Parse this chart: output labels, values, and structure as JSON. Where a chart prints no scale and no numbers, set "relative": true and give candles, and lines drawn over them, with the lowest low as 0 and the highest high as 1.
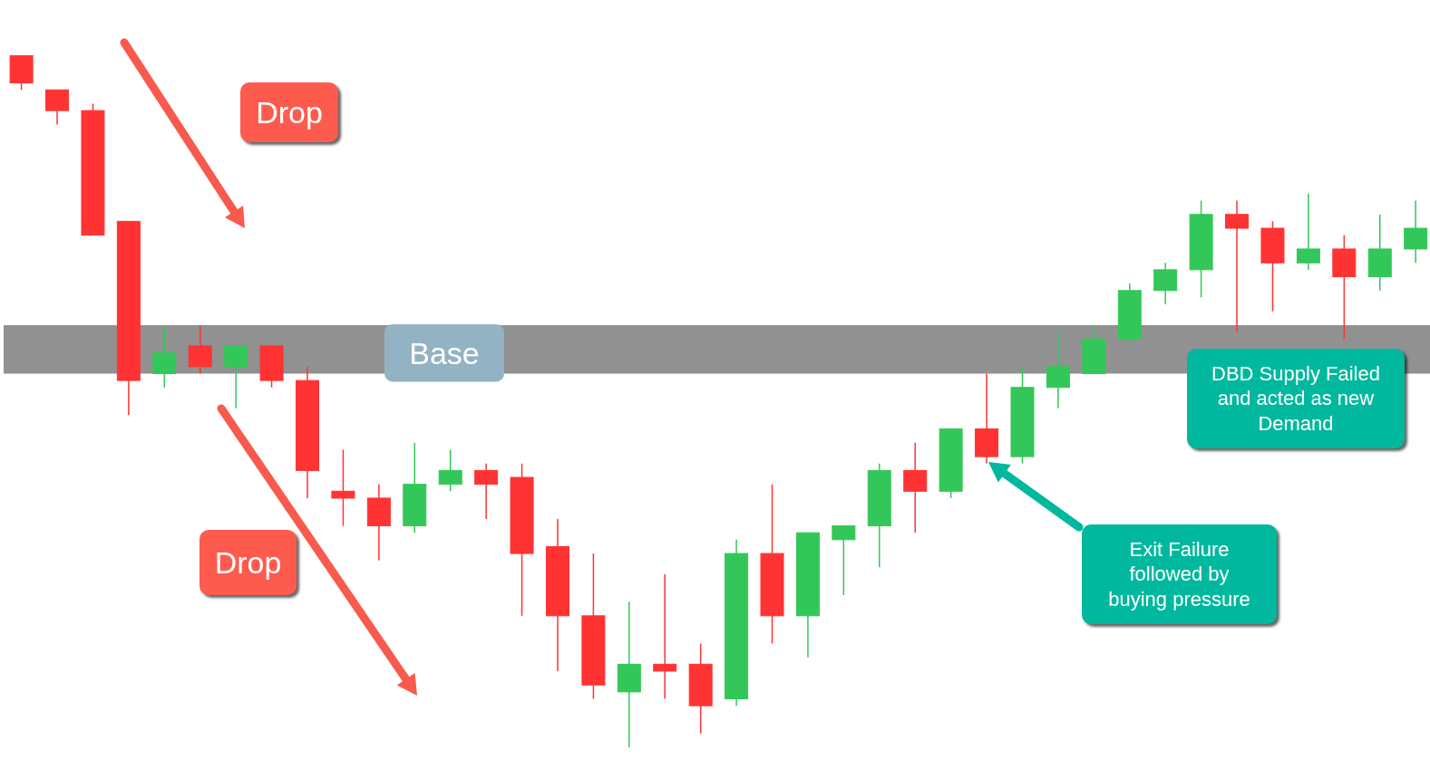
{
  "chart_data": {
    "type": "candlestick",
    "relative": true,
    "categories": [
      null,
      null,
      null,
      null,
      null,
      null,
      null,
      null,
      null,
      null,
      null,
      null,
      null,
      null,
      null,
      null,
      null,
      null,
      null,
      null,
      null,
      null,
      null,
      null,
      null,
      null,
      null,
      null,
      null,
      null,
      null,
      null,
      null,
      null,
      null,
      null,
      null,
      null,
      null,
      null
    ],
    "ohlc": [
      [
        1.0,
        1.0,
        0.95,
        0.96
      ],
      [
        0.95,
        0.95,
        0.9,
        0.92
      ],
      [
        0.92,
        0.93,
        0.74,
        0.74
      ],
      [
        0.76,
        0.76,
        0.48,
        0.53
      ],
      [
        0.54,
        0.61,
        0.52,
        0.57
      ],
      [
        0.58,
        0.61,
        0.54,
        0.55
      ],
      [
        0.55,
        0.58,
        0.49,
        0.58
      ],
      [
        0.58,
        0.58,
        0.52,
        0.53
      ],
      [
        0.53,
        0.55,
        0.36,
        0.4
      ],
      [
        0.37,
        0.43,
        0.32,
        0.36
      ],
      [
        0.36,
        0.38,
        0.27,
        0.32
      ],
      [
        0.32,
        0.44,
        0.31,
        0.38
      ],
      [
        0.38,
        0.43,
        0.37,
        0.4
      ],
      [
        0.4,
        0.41,
        0.33,
        0.38
      ],
      [
        0.39,
        0.41,
        0.19,
        0.28
      ],
      [
        0.29,
        0.33,
        0.11,
        0.19
      ],
      [
        0.19,
        0.28,
        0.07,
        0.09
      ],
      [
        0.08,
        0.21,
        0.0,
        0.12
      ],
      [
        0.12,
        0.25,
        0.07,
        0.11
      ],
      [
        0.12,
        0.15,
        0.02,
        0.06
      ],
      [
        0.07,
        0.3,
        0.06,
        0.28
      ],
      [
        0.28,
        0.38,
        0.15,
        0.19
      ],
      [
        0.19,
        0.31,
        0.13,
        0.31
      ],
      [
        0.3,
        0.32,
        0.22,
        0.32
      ],
      [
        0.32,
        0.41,
        0.26,
        0.4
      ],
      [
        0.4,
        0.44,
        0.31,
        0.37
      ],
      [
        0.37,
        0.46,
        0.36,
        0.46
      ],
      [
        0.46,
        0.54,
        0.41,
        0.42
      ],
      [
        0.42,
        0.55,
        0.41,
        0.52
      ],
      [
        0.52,
        0.6,
        0.49,
        0.55
      ],
      [
        0.54,
        0.61,
        0.54,
        0.59
      ],
      [
        0.59,
        0.67,
        0.58,
        0.66
      ],
      [
        0.66,
        0.7,
        0.64,
        0.69
      ],
      [
        0.69,
        0.79,
        0.65,
        0.77
      ],
      [
        0.77,
        0.79,
        0.6,
        0.75
      ],
      [
        0.75,
        0.76,
        0.63,
        0.7
      ],
      [
        0.7,
        0.8,
        0.69,
        0.72
      ],
      [
        0.72,
        0.74,
        0.59,
        0.68
      ],
      [
        0.68,
        0.77,
        0.66,
        0.72
      ],
      [
        0.72,
        0.79,
        0.7,
        0.75
      ]
    ],
    "colors": [
      "#ff3333",
      "#ff3333",
      "#ff3333",
      "#ff3333",
      "#33c759",
      "#ff3333",
      "#33c759",
      "#ff3333",
      "#ff3333",
      "#ff3333",
      "#ff3333",
      "#33c759",
      "#33c759",
      "#ff3333",
      "#ff3333",
      "#ff3333",
      "#ff3333",
      "#33c759",
      "#ff3333",
      "#ff3333",
      "#33c759",
      "#ff3333",
      "#33c759",
      "#33c759",
      "#33c759",
      "#ff3333",
      "#33c759",
      "#ff3333",
      "#33c759",
      "#33c759",
      "#33c759",
      "#33c759",
      "#33c759",
      "#33c759",
      "#ff3333",
      "#ff3333",
      "#33c759",
      "#ff3333",
      "#33c759",
      "#33c759"
    ],
    "bands": [
      {
        "axis": "y",
        "from": 0.54,
        "to": 0.61,
        "label": "Base",
        "color": "#919191"
      }
    ],
    "annotations": [
      "Drop",
      "Drop",
      "Exit Failure followed by buying pressure",
      "DBD Supply Failed and acted as new Demand"
    ]
  }
}
